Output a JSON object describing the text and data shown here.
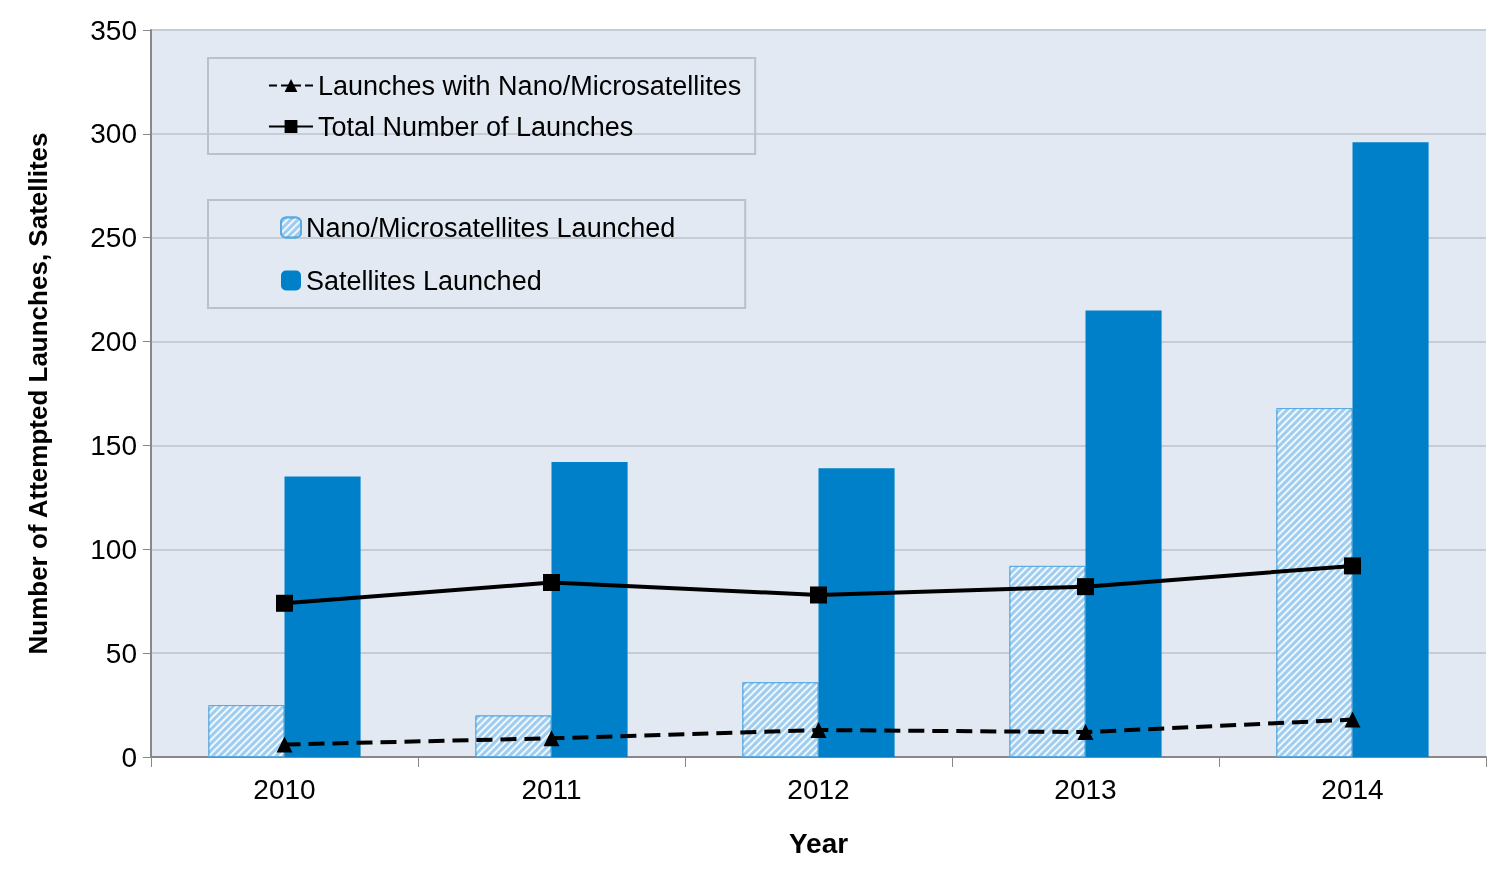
{
  "chart_data": {
    "type": "bar",
    "xlabel": "Year",
    "ylabel": "Number of Attempted Launches, Satellites",
    "categories": [
      "2010",
      "2011",
      "2012",
      "2013",
      "2014"
    ],
    "series": [
      {
        "name": "Nano/Microsatellites Launched",
        "color": "#9fcdef",
        "values": [
          25,
          20,
          36,
          92,
          168
        ]
      },
      {
        "name": "Satellites Launched",
        "color": "#0080c8",
        "values": [
          135,
          142,
          139,
          215,
          296
        ]
      },
      {
        "name": "Launches with Nano/Microsatellites",
        "type": "line",
        "color": "#000000",
        "marker": "triangle",
        "line_style": "dashed",
        "values": [
          6,
          9,
          13,
          12,
          18
        ]
      },
      {
        "name": "Total Number of Launches",
        "type": "line",
        "color": "#000000",
        "marker": "square",
        "line_style": "solid",
        "values": [
          74,
          84,
          78,
          82,
          92
        ]
      }
    ],
    "ylim": [
      0,
      350
    ],
    "yticks": [
      0,
      50,
      100,
      150,
      200,
      250,
      300,
      350
    ],
    "grid": "y",
    "legend": "top left"
  }
}
